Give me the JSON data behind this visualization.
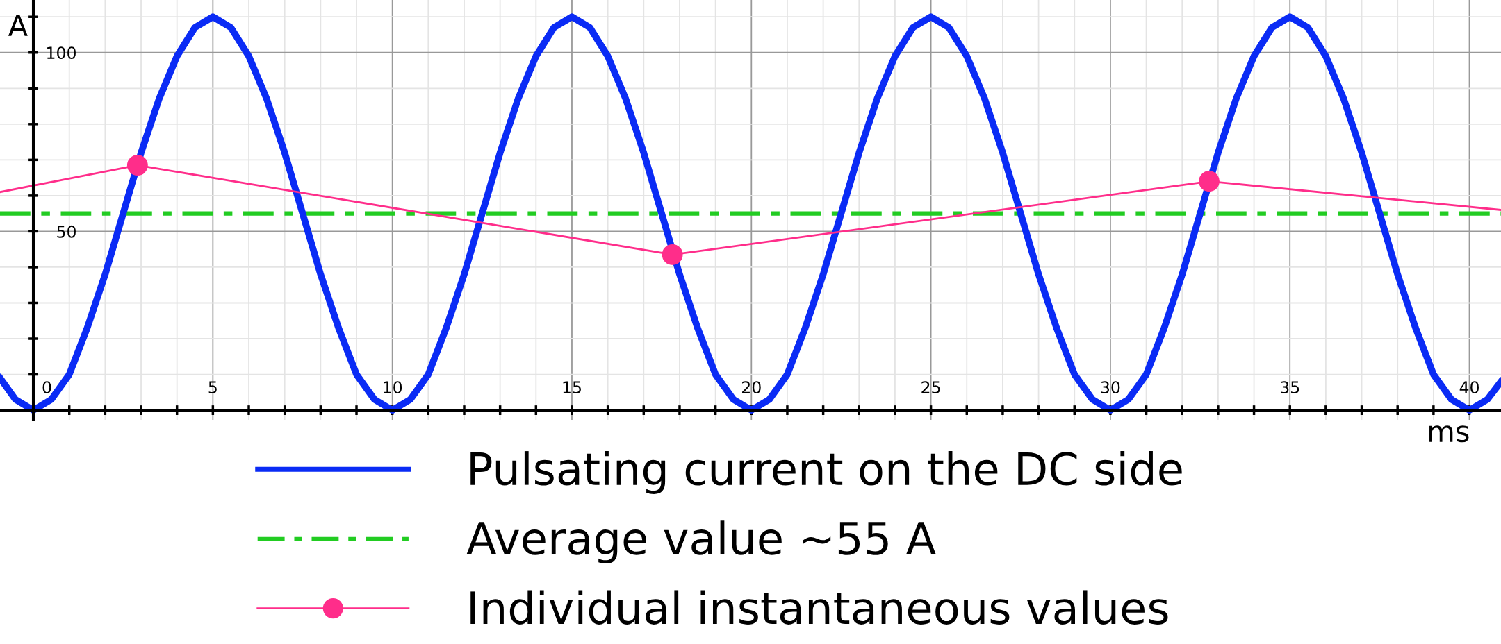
{
  "chart_data": {
    "type": "line",
    "xlabel": "ms",
    "ylabel": "A",
    "xlim": [
      -0.93,
      40.88
    ],
    "ylim": [
      -2.7,
      114.7
    ],
    "xticks": [
      {
        "value": 0,
        "label": "0"
      },
      {
        "value": 1,
        "label": null
      },
      {
        "value": 2,
        "label": null
      },
      {
        "value": 3,
        "label": null
      },
      {
        "value": 4,
        "label": null
      },
      {
        "value": 5,
        "label": "5"
      },
      {
        "value": 6,
        "label": null
      },
      {
        "value": 7,
        "label": null
      },
      {
        "value": 8,
        "label": null
      },
      {
        "value": 9,
        "label": null
      },
      {
        "value": 10,
        "label": "10"
      },
      {
        "value": 11,
        "label": null
      },
      {
        "value": 12,
        "label": null
      },
      {
        "value": 13,
        "label": null
      },
      {
        "value": 14,
        "label": null
      },
      {
        "value": 15,
        "label": "15"
      },
      {
        "value": 16,
        "label": null
      },
      {
        "value": 17,
        "label": null
      },
      {
        "value": 18,
        "label": null
      },
      {
        "value": 19,
        "label": null
      },
      {
        "value": 20,
        "label": "20"
      },
      {
        "value": 21,
        "label": null
      },
      {
        "value": 22,
        "label": null
      },
      {
        "value": 23,
        "label": null
      },
      {
        "value": 24,
        "label": null
      },
      {
        "value": 25,
        "label": "25"
      },
      {
        "value": 26,
        "label": null
      },
      {
        "value": 27,
        "label": null
      },
      {
        "value": 28,
        "label": null
      },
      {
        "value": 29,
        "label": null
      },
      {
        "value": 30,
        "label": "30"
      },
      {
        "value": 31,
        "label": null
      },
      {
        "value": 32,
        "label": null
      },
      {
        "value": 33,
        "label": null
      },
      {
        "value": 34,
        "label": null
      },
      {
        "value": 35,
        "label": "35"
      },
      {
        "value": 36,
        "label": null
      },
      {
        "value": 37,
        "label": null
      },
      {
        "value": 38,
        "label": null
      },
      {
        "value": 39,
        "label": null
      },
      {
        "value": 40,
        "label": "40"
      }
    ],
    "yticks": [
      {
        "value": 10,
        "label": null
      },
      {
        "value": 20,
        "label": null
      },
      {
        "value": 30,
        "label": null
      },
      {
        "value": 40,
        "label": null
      },
      {
        "value": 50,
        "label": "50"
      },
      {
        "value": 60,
        "label": null
      },
      {
        "value": 70,
        "label": null
      },
      {
        "value": 80,
        "label": null
      },
      {
        "value": 90,
        "label": null
      },
      {
        "value": 100,
        "label": "100"
      },
      {
        "value": 110,
        "label": null
      }
    ],
    "grid": true,
    "legend": "bottom",
    "series": [
      {
        "name": "Pulsating current on the DC side",
        "color": "#0a2bf5",
        "type": "line",
        "marker": "none",
        "x": [
          -0.93,
          -0.5,
          0,
          0.5,
          1,
          1.5,
          2,
          2.5,
          3,
          3.5,
          4,
          4.5,
          5,
          5.5,
          6,
          6.5,
          7,
          7.5,
          8,
          8.5,
          9,
          9.5,
          10,
          10.5,
          11,
          11.5,
          12,
          12.5,
          13,
          13.5,
          14,
          14.5,
          15,
          15.5,
          16,
          16.5,
          17,
          17.5,
          18,
          18.5,
          19,
          19.5,
          20,
          20.5,
          21,
          21.5,
          22,
          22.5,
          23,
          23.5,
          24,
          24.5,
          25,
          25.5,
          26,
          26.5,
          27,
          27.5,
          28,
          28.5,
          29,
          29.5,
          30,
          30.5,
          31,
          31.5,
          32,
          32.5,
          33,
          33.5,
          34,
          34.5,
          35,
          35.5,
          36,
          36.5,
          37,
          37.5,
          38,
          38.5,
          39,
          39.5,
          40,
          40.5,
          40.88
        ],
        "values": [
          9,
          3,
          0,
          3,
          10,
          23,
          38,
          55,
          72,
          87,
          99,
          107,
          110,
          107,
          99,
          87,
          72,
          55,
          38,
          23,
          10,
          3,
          0,
          3,
          10,
          23,
          38,
          55,
          72,
          87,
          99,
          107,
          110,
          107,
          99,
          87,
          72,
          55,
          38,
          23,
          10,
          3,
          0,
          3,
          10,
          23,
          38,
          55,
          72,
          87,
          99,
          107,
          110,
          107,
          99,
          87,
          72,
          55,
          38,
          23,
          10,
          3,
          0,
          3,
          10,
          23,
          38,
          55,
          72,
          87,
          99,
          107,
          110,
          107,
          99,
          87,
          72,
          55,
          38,
          23,
          10,
          3,
          0,
          3,
          8
        ]
      },
      {
        "color": "#ff2d8a",
        "type": "line",
        "marker": "none",
        "x": [
          -0.93,
          2.9,
          17.8,
          32.75,
          40.88
        ],
        "values": [
          61,
          68.5,
          43.5,
          64,
          56
        ]
      },
      {
        "name": "Individual instantaneous values",
        "color": "#ff2d8a",
        "type": "scatter",
        "marker": "circle",
        "x": [
          2.9,
          17.8,
          32.75
        ],
        "values": [
          68.5,
          43.5,
          64
        ]
      }
    ],
    "ref_lines": [
      {
        "axis": "y",
        "value": 55,
        "label": "Average value ~55 A",
        "color": "#22cc22",
        "line_style": "dashed"
      }
    ]
  }
}
